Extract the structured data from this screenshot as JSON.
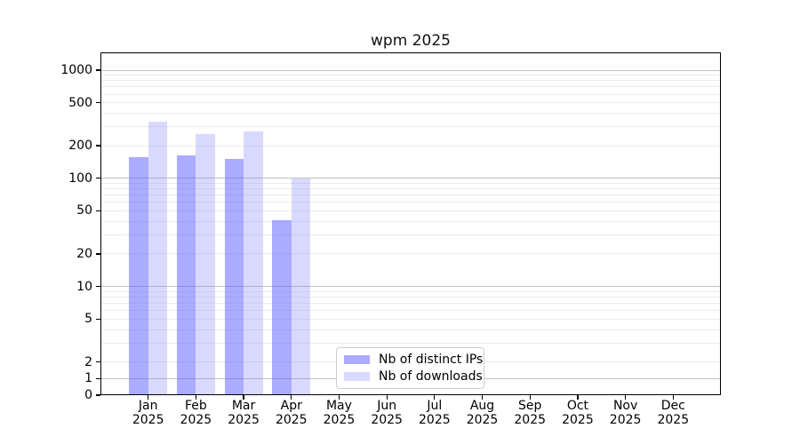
{
  "chart_data": {
    "type": "bar",
    "title": "wpm 2025",
    "categories": [
      "Jan",
      "Feb",
      "Mar",
      "Apr",
      "May",
      "Jun",
      "Jul",
      "Aug",
      "Sep",
      "Oct",
      "Nov",
      "Dec"
    ],
    "category_year": "2025",
    "series": [
      {
        "name": "Nb of distinct IPs",
        "color": "rgba(102,102,255,0.55)",
        "values": [
          157,
          164,
          151,
          41,
          null,
          null,
          null,
          null,
          null,
          null,
          null,
          null
        ]
      },
      {
        "name": "Nb of downloads",
        "color": "rgba(102,102,255,0.25)",
        "values": [
          335,
          255,
          270,
          100,
          null,
          null,
          null,
          null,
          null,
          null,
          null,
          null
        ]
      }
    ],
    "y_axis": {
      "scale": "symlog",
      "linthresh": 2,
      "ticks": [
        0,
        1,
        2,
        5,
        10,
        20,
        50,
        100,
        200,
        500,
        1000
      ],
      "major_gridlines": [
        1,
        10,
        100,
        1000
      ],
      "minor_gridlines": [
        2,
        3,
        4,
        5,
        6,
        7,
        8,
        9,
        20,
        30,
        40,
        50,
        60,
        70,
        80,
        90,
        200,
        300,
        400,
        500,
        600,
        700,
        800,
        900
      ],
      "ymax": 1460
    },
    "xlabel": "",
    "ylabel": "",
    "grid": true,
    "legend_position": "lower center-left"
  },
  "colors": {
    "major_grid": "#c2c2c2",
    "minor_grid": "#ececec",
    "spine": "#000000",
    "background": "#ffffff",
    "legend_border": "#cccccc"
  }
}
